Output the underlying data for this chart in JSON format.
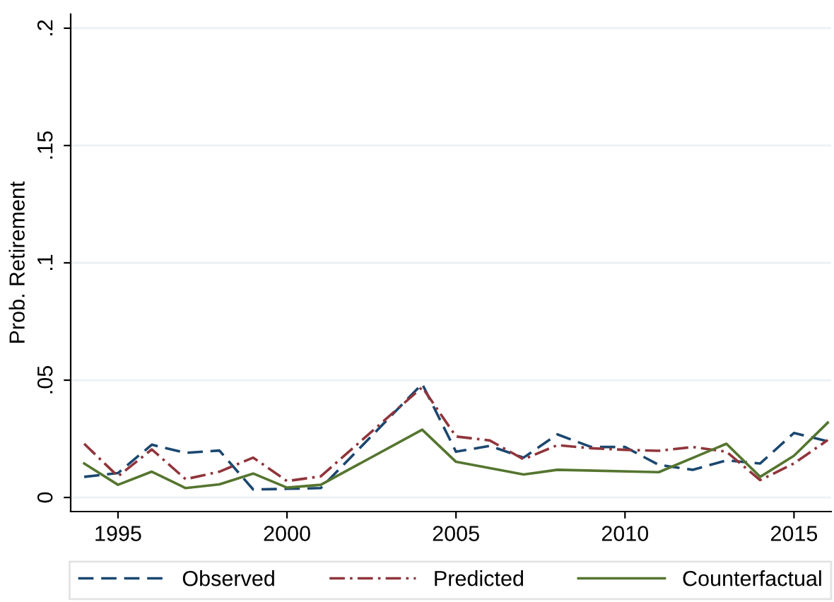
{
  "chart_data": {
    "type": "line",
    "ylabel": "Prob. Retirement",
    "xlim": [
      1993.6,
      2016.1
    ],
    "ylim": [
      -0.006,
      0.206
    ],
    "xticks": [
      1995,
      2000,
      2005,
      2010,
      2015
    ],
    "yticks": [
      {
        "value": 0,
        "label": "0"
      },
      {
        "value": 0.05,
        "label": ".05"
      },
      {
        "value": 0.1,
        "label": ".1"
      },
      {
        "value": 0.15,
        "label": ".15"
      },
      {
        "value": 0.2,
        "label": ".2"
      }
    ],
    "grid": "y",
    "legend": "bottom",
    "series": [
      {
        "name": "Observed",
        "color": "#1a476f",
        "line_style": "dashed",
        "x": [
          1994,
          1995,
          1996,
          1997,
          1998,
          1999,
          2000,
          2001,
          2004,
          2005,
          2006,
          2007,
          2008,
          2009,
          2010,
          2011,
          2012,
          2013,
          2014,
          2015,
          2016
        ],
        "values": [
          0.0088,
          0.0104,
          0.0225,
          0.019,
          0.02,
          0.0034,
          0.0037,
          0.004,
          0.0484,
          0.0195,
          0.022,
          0.017,
          0.0269,
          0.0215,
          0.0215,
          0.0139,
          0.0118,
          0.0158,
          0.0145,
          0.0275,
          0.0239
        ]
      },
      {
        "name": "Predicted",
        "color": "#90353b",
        "line_style": "dashdot",
        "x": [
          1994,
          1995,
          1996,
          1997,
          1998,
          1999,
          2000,
          2001,
          2004,
          2005,
          2006,
          2007,
          2008,
          2009,
          2010,
          2011,
          2012,
          2013,
          2014,
          2015,
          2016
        ],
        "values": [
          0.0229,
          0.009,
          0.0205,
          0.0078,
          0.011,
          0.017,
          0.007,
          0.009,
          0.047,
          0.026,
          0.0243,
          0.0163,
          0.0223,
          0.021,
          0.0203,
          0.0199,
          0.0215,
          0.0195,
          0.0074,
          0.0145,
          0.0245
        ]
      },
      {
        "name": "Counterfactual",
        "color": "#55752f",
        "line_style": "solid",
        "x": [
          1994,
          1995,
          1996,
          1997,
          1998,
          1999,
          2000,
          2001,
          2004,
          2005,
          2007,
          2008,
          2011,
          2013,
          2014,
          2015,
          2016
        ],
        "values": [
          0.0145,
          0.0054,
          0.011,
          0.004,
          0.0056,
          0.0102,
          0.0042,
          0.0054,
          0.0289,
          0.0152,
          0.0098,
          0.0118,
          0.0108,
          0.0229,
          0.0088,
          0.0178,
          0.0319
        ]
      }
    ]
  }
}
